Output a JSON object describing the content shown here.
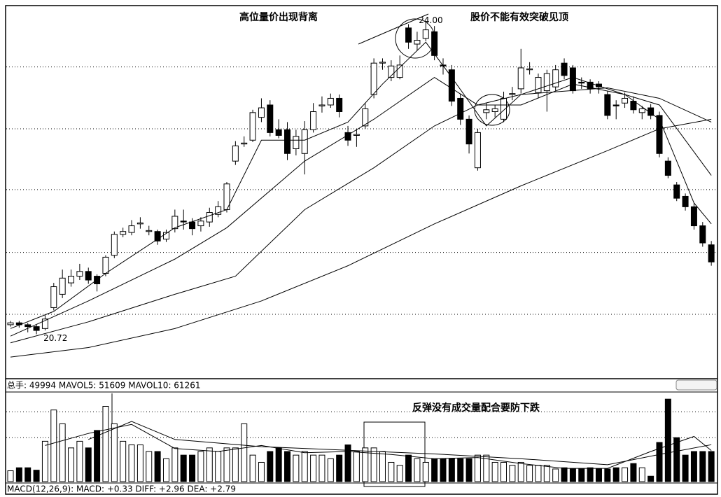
{
  "chart_data": [
    {
      "type": "candlestick",
      "annotations": [
        "高位量价出现背离",
        "股价不能有效突破见顶"
      ],
      "high_label": {
        "value": 24.0,
        "label": "24.00"
      },
      "low_label": 20.72,
      "up_color": "#ffffff",
      "down_color": "#000000",
      "edge_color": "#000000",
      "ylim": [
        20.26,
        24.16
      ],
      "yticks": [
        20.93,
        21.58,
        22.24,
        22.88,
        23.53
      ],
      "grid": true,
      "open": [
        20.82,
        20.84,
        20.82,
        20.8,
        20.78,
        21.0,
        21.14,
        21.26,
        21.33,
        21.38,
        21.33,
        21.36,
        21.55,
        21.77,
        21.79,
        21.88,
        21.8,
        21.8,
        21.72,
        21.83,
        21.91,
        21.9,
        21.86,
        21.9,
        21.98,
        22.03,
        22.54,
        22.72,
        22.76,
        23.0,
        23.13,
        22.87,
        22.87,
        22.67,
        22.62,
        22.87,
        23.12,
        23.13,
        23.2,
        22.84,
        22.81,
        22.91,
        23.24,
        23.57,
        23.42,
        23.42,
        23.94,
        23.77,
        23.83,
        23.9,
        23.55,
        23.5,
        23.2,
        22.98,
        22.47,
        23.05,
        23.06,
        22.98,
        23.24,
        23.3,
        23.5,
        23.26,
        23.28,
        23.32,
        23.57,
        23.52,
        23.37,
        23.37,
        23.35,
        23.24,
        23.13,
        23.15,
        23.17,
        23.05,
        23.1,
        23.02,
        22.54,
        22.29,
        22.17,
        22.06,
        21.86,
        21.66
      ],
      "high": [
        20.86,
        20.86,
        20.84,
        20.82,
        20.92,
        21.26,
        21.4,
        21.4,
        21.46,
        21.42,
        21.35,
        21.55,
        21.8,
        21.84,
        21.92,
        21.95,
        21.86,
        21.82,
        21.82,
        22.03,
        22.03,
        21.94,
        21.95,
        22.05,
        22.12,
        22.32,
        22.75,
        22.8,
        23.08,
        23.2,
        23.18,
        22.98,
        22.95,
        22.87,
        22.96,
        23.15,
        23.22,
        23.25,
        23.24,
        22.91,
        22.88,
        23.15,
        23.62,
        23.62,
        23.6,
        23.65,
        23.98,
        23.9,
        24.0,
        23.96,
        23.62,
        23.55,
        23.25,
        23.02,
        22.88,
        23.15,
        23.13,
        23.27,
        23.32,
        23.72,
        23.58,
        23.46,
        23.5,
        23.55,
        23.62,
        23.55,
        23.42,
        23.4,
        23.38,
        23.28,
        23.18,
        23.26,
        23.22,
        23.12,
        23.14,
        23.06,
        22.58,
        22.32,
        22.2,
        22.1,
        21.9,
        21.7
      ],
      "low": [
        20.8,
        20.79,
        20.74,
        20.72,
        20.76,
        20.97,
        21.1,
        21.22,
        21.29,
        21.25,
        21.17,
        21.33,
        21.52,
        21.74,
        21.76,
        21.83,
        21.76,
        21.66,
        21.69,
        21.79,
        21.82,
        21.76,
        21.8,
        21.85,
        21.95,
        22.0,
        22.5,
        22.69,
        22.74,
        22.95,
        22.8,
        22.78,
        22.55,
        22.6,
        22.4,
        22.84,
        23.05,
        23.1,
        23.0,
        22.7,
        22.69,
        22.88,
        23.2,
        23.5,
        23.38,
        23.4,
        23.72,
        23.7,
        23.8,
        23.6,
        23.45,
        23.12,
        22.92,
        22.62,
        22.44,
        22.98,
        23.0,
        22.95,
        23.18,
        23.25,
        23.45,
        23.2,
        23.06,
        23.28,
        23.4,
        23.25,
        23.3,
        23.25,
        23.25,
        22.98,
        22.98,
        23.1,
        23.04,
        22.98,
        22.98,
        22.58,
        22.36,
        22.12,
        22.02,
        21.82,
        21.64,
        21.44
      ],
      "close": [
        20.84,
        20.82,
        20.8,
        20.76,
        20.88,
        21.22,
        21.31,
        21.33,
        21.38,
        21.29,
        21.25,
        21.53,
        21.77,
        21.8,
        21.86,
        21.89,
        21.81,
        21.7,
        21.79,
        21.96,
        21.9,
        21.83,
        21.91,
        22.0,
        22.06,
        22.3,
        22.7,
        22.73,
        23.05,
        23.1,
        22.84,
        22.81,
        22.62,
        22.8,
        22.87,
        23.06,
        23.13,
        23.2,
        23.06,
        22.76,
        22.82,
        23.09,
        23.57,
        23.58,
        23.54,
        23.55,
        23.79,
        23.81,
        23.92,
        23.65,
        23.54,
        23.17,
        22.98,
        22.72,
        22.84,
        23.08,
        23.09,
        23.2,
        23.25,
        23.52,
        23.51,
        23.42,
        23.46,
        23.5,
        23.44,
        23.28,
        23.36,
        23.3,
        23.32,
        23.02,
        23.12,
        23.2,
        23.08,
        23.09,
        23.02,
        22.62,
        22.39,
        22.15,
        22.06,
        21.86,
        21.68,
        21.48
      ],
      "lines": [
        {
          "color": "#000000",
          "x": [
            0,
            9,
            19,
            29,
            39,
            49,
            59,
            69,
            75,
            81
          ],
          "values": [
            20.48,
            20.58,
            20.78,
            21.07,
            21.44,
            21.88,
            22.28,
            22.65,
            22.88,
            22.98
          ]
        },
        {
          "color": "#000000",
          "x": [
            0,
            9,
            19,
            26,
            34,
            42,
            49,
            54,
            59,
            69,
            75,
            81
          ],
          "values": [
            20.63,
            20.85,
            21.14,
            21.33,
            22.03,
            22.47,
            22.91,
            23.13,
            23.24,
            23.31,
            23.2,
            22.95
          ]
        },
        {
          "color": "#000000",
          "x": [
            0,
            9,
            19,
            25,
            34,
            42,
            49,
            54,
            59,
            65,
            71,
            75,
            81
          ],
          "values": [
            20.7,
            21.07,
            21.51,
            21.84,
            22.54,
            22.98,
            23.42,
            23.13,
            23.13,
            23.35,
            23.24,
            23.13,
            22.39
          ]
        },
        {
          "color": "#000000",
          "x": [
            0,
            5,
            11,
            19,
            25,
            29,
            34,
            39,
            43,
            48,
            51,
            55,
            59,
            65,
            71,
            75,
            79,
            81
          ],
          "values": [
            20.78,
            20.96,
            21.36,
            21.84,
            22.03,
            22.76,
            22.76,
            22.95,
            23.35,
            23.79,
            23.42,
            22.91,
            23.24,
            23.42,
            23.24,
            22.98,
            22.1,
            21.88
          ]
        }
      ]
    },
    {
      "type": "volume",
      "header": "总手: 49994  MAVOL5: 51609  MAVOL10: 61261",
      "annotation": "反弹没有成交量配合要防下跌",
      "ylim": [
        0,
        150000
      ],
      "yticks": [
        73000,
        116000
      ],
      "grid": true,
      "values": [
        18000,
        23000,
        23000,
        19000,
        67000,
        119000,
        96000,
        56000,
        67000,
        56000,
        85000,
        125000,
        96000,
        67000,
        61000,
        61000,
        50000,
        50000,
        38000,
        56000,
        44000,
        44000,
        50000,
        56000,
        50000,
        56000,
        56000,
        96000,
        44000,
        32000,
        50000,
        56000,
        50000,
        44000,
        50000,
        44000,
        44000,
        38000,
        44000,
        61000,
        50000,
        56000,
        56000,
        50000,
        32000,
        27000,
        44000,
        38000,
        32000,
        38000,
        38000,
        38000,
        38000,
        38000,
        44000,
        44000,
        32000,
        32000,
        27000,
        32000,
        27000,
        27000,
        27000,
        21000,
        23000,
        21000,
        21000,
        23000,
        21000,
        21000,
        23000,
        23000,
        30000,
        23000,
        9000,
        65000,
        137000,
        73000,
        44000,
        50000,
        50000,
        49994
      ],
      "lines": [
        {
          "color": "#000000",
          "x": [
            4,
            9,
            14,
            19,
            24,
            29,
            34,
            39,
            44,
            49,
            54,
            59,
            64,
            69,
            74,
            79,
            81
          ],
          "values": [
            60000,
            80000,
            95000,
            55000,
            50000,
            60000,
            48000,
            50000,
            45000,
            38000,
            40000,
            30000,
            22000,
            22000,
            50000,
            75000,
            51609
          ]
        },
        {
          "color": "#000000",
          "x": [
            9,
            14,
            19,
            29,
            39,
            49,
            59,
            69,
            75,
            81
          ],
          "values": [
            70000,
            100000,
            70000,
            58000,
            52000,
            46000,
            38000,
            28000,
            45000,
            61261
          ]
        }
      ]
    }
  ],
  "footer": "MACD(12,26,9): MACD: +0.33  DIFF: +2.96  DEA: +2.79"
}
